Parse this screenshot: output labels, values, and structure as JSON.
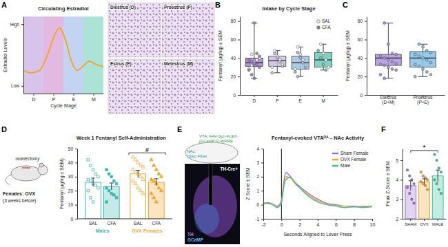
{
  "panel_labels": [
    "A",
    "B",
    "C",
    "D",
    "E",
    "F"
  ],
  "micrographs": {
    "labels": [
      "Diestrus (D)",
      "Proestrus (P)",
      "Estrus (E)",
      "Metestrus (M)"
    ]
  },
  "ovx_schematic": {
    "group": "Females: OVX",
    "note": "(3 weeks before)",
    "procedure": "ovariectomy"
  },
  "fp_schematic": {
    "vta": [
      "VTA: AAV-Syn-FLEX-",
      "jGCaMP7c-WPRE"
    ],
    "nac": [
      "NAc:",
      "Optic Fiber"
    ],
    "line": "TH-Cre+",
    "stain1": "TH",
    "stain2": "GCaMP"
  },
  "chart_data": [
    {
      "type": "line",
      "title": "Circulating Estradiol",
      "x_label": "Cycle Stage",
      "y_label": "Estradiol Levels",
      "x": [
        0,
        0.4,
        0.8,
        1.2,
        1.5,
        1.8,
        2.1,
        2.4,
        2.7,
        3.0,
        3.3,
        3.6,
        4.0
      ],
      "values": [
        0.3,
        0.27,
        0.3,
        0.5,
        0.72,
        0.85,
        0.7,
        0.42,
        0.3,
        0.36,
        0.42,
        0.38,
        0.35
      ],
      "color": "#f2a630",
      "colors": [
        "#d8c3ea",
        "#e2b9e0",
        "#c3d3f2",
        "#ade2d6"
      ],
      "xlim": [
        0,
        4
      ],
      "xticks": [
        {
          "value": 0.5,
          "label": "D"
        },
        {
          "value": 1.5,
          "label": "P"
        },
        {
          "value": 2.5,
          "label": "E"
        },
        {
          "value": 3.5,
          "label": "M"
        }
      ],
      "ylim": [
        0,
        1
      ],
      "yticks": [
        {
          "value": 0.1,
          "label": "Low"
        },
        {
          "value": 0.9,
          "label": "High"
        }
      ]
    },
    {
      "type": "box",
      "title": "Intake by Cycle Stage",
      "y_label": "Fentanyl (µg/kg) ± SEM",
      "categories": [
        "D",
        "P",
        "E",
        "M"
      ],
      "colors": [
        "#9f86cc",
        "#c9bde3",
        "#9cc1e3",
        "#6ccab8"
      ],
      "boxes": [
        {
          "min": 18,
          "q1": 31,
          "median": 35,
          "q3": 40,
          "max": 78
        },
        {
          "min": 24,
          "q1": 31,
          "median": 37,
          "q3": 42,
          "max": 48
        },
        {
          "min": 20,
          "q1": 28,
          "median": 35,
          "q3": 42,
          "max": 52
        },
        {
          "min": 27,
          "q1": 30,
          "median": 38,
          "q3": 46,
          "max": 55
        }
      ],
      "series": [
        {
          "name": "SAL",
          "marker": "open-circle",
          "values": [
            [
              32,
              35,
              38,
              40,
              28,
              44
            ],
            [
              48,
              42,
              38,
              33,
              30
            ],
            [
              52,
              44,
              38,
              32,
              28
            ],
            [
              55,
              45,
              38,
              30
            ]
          ]
        },
        {
          "name": "CFA",
          "marker": "filled-circle",
          "values": [
            [
              78,
              45,
              42,
              38,
              36,
              34,
              33,
              30,
              27,
              22,
              18
            ],
            [
              45,
              40,
              36,
              31,
              24
            ],
            [
              46,
              40,
              35,
              30,
              25,
              20
            ],
            [
              48,
              40,
              33,
              27
            ]
          ]
        }
      ],
      "legend": "top-right",
      "ylim": [
        0,
        85
      ],
      "yticks": [
        0,
        20,
        40,
        60,
        80
      ]
    },
    {
      "type": "box",
      "y_label": "Fentanyl (µg/kg) ± SEM",
      "categories": [
        "Diestrus (D+M)",
        "Proestrus (P+E)"
      ],
      "colors": [
        "#ae93dc",
        "#84bfe6"
      ],
      "boxes": [
        {
          "min": 18,
          "q1": 32,
          "median": 40,
          "q3": 44,
          "max": 78
        },
        {
          "min": 20,
          "q1": 30,
          "median": 40,
          "q3": 47,
          "max": 55
        }
      ],
      "points": [
        [
          78,
          55,
          45,
          44,
          42,
          40,
          38,
          36,
          34,
          33,
          32,
          30,
          28,
          27,
          22,
          18
        ],
        [
          55,
          52,
          48,
          46,
          44,
          42,
          40,
          38,
          35,
          33,
          31,
          28,
          25,
          22,
          20
        ]
      ],
      "ylim": [
        0,
        85
      ],
      "yticks": [
        0,
        20,
        40,
        60,
        80
      ]
    },
    {
      "type": "bar",
      "title": "Week 1 Fentanyl Self-Administration",
      "y_label": "Fentanyl (µg/kg ± SEM)",
      "categories": [
        "SAL",
        "CFA"
      ],
      "series": [
        {
          "name": "Males",
          "color": "#3ab5b0",
          "marker": "square",
          "values": [
            26,
            23
          ],
          "error": [
            3,
            2.5
          ],
          "points": [
            [
              42,
              38,
              35,
              32,
              30,
              28,
              27,
              25,
              24,
              22,
              20,
              15,
              12
            ],
            [
              35,
              32,
              30,
              27,
              25,
              22,
              20,
              18,
              17,
              15,
              12
            ]
          ]
        },
        {
          "name": "OVX Females",
          "color": "#f2a630",
          "marker": "triangle",
          "values": [
            32,
            26
          ],
          "error": [
            2.5,
            2.5
          ],
          "points": [
            [
              44,
              42,
              40,
              38,
              37,
              35,
              33,
              32,
              30,
              28,
              27,
              25,
              22,
              20,
              18
            ],
            [
              42,
              38,
              35,
              32,
              30,
              28,
              27,
              25,
              22,
              20,
              18,
              15,
              12
            ]
          ]
        }
      ],
      "annotations": [
        {
          "text": "#",
          "series": 1,
          "y": 47
        }
      ],
      "ylim": [
        0,
        50
      ],
      "yticks": [
        0,
        10,
        20,
        30,
        40,
        50
      ]
    },
    {
      "type": "line",
      "title": "Fentanyl-evoked VTAᴰᴬ→NAc Activity",
      "x_label": "Seconds Aligned to Lever Press",
      "y_label": "Z Score ± SEM",
      "x": [
        -2,
        -1.5,
        -1,
        -0.5,
        0,
        0.25,
        0.5,
        1,
        1.5,
        2,
        3,
        4,
        5,
        6,
        7,
        8,
        9,
        10
      ],
      "series": [
        {
          "name": "Sham Female",
          "color": "#9a6fd6",
          "values": [
            0.1,
            0.15,
            0.05,
            -0.1,
            0.3,
            1.6,
            2.3,
            2.0,
            1.6,
            1.3,
            0.8,
            0.4,
            0.1,
            0.0,
            -0.1,
            -0.1,
            -0.15,
            -0.1
          ]
        },
        {
          "name": "OVX Female",
          "color": "#f2a630",
          "values": [
            0.15,
            0.1,
            0.0,
            -0.15,
            0.2,
            1.4,
            2.0,
            1.9,
            1.5,
            1.2,
            0.7,
            0.3,
            0.05,
            -0.05,
            -0.1,
            -0.15,
            -0.1,
            -0.1
          ]
        },
        {
          "name": "Male",
          "color": "#3cc3a0",
          "values": [
            0.05,
            0.1,
            0.05,
            -0.2,
            0.1,
            1.2,
            1.8,
            1.95,
            1.6,
            1.2,
            0.6,
            0.2,
            0.0,
            -0.1,
            -0.2,
            -0.15,
            -0.2,
            -0.15
          ]
        }
      ],
      "vline": 0,
      "legend": "top-right",
      "xlim": [
        -2,
        10
      ],
      "xticks": [
        -2,
        0,
        2,
        4,
        6,
        8,
        10
      ],
      "ylim": [
        -1,
        4
      ],
      "yticks": [
        -1,
        0,
        1,
        2,
        3,
        4
      ]
    },
    {
      "type": "bar",
      "y_label": "Peak Z-Score ± SEM",
      "categories": [
        "SHAM",
        "OVX",
        "MALE"
      ],
      "values": [
        3.7,
        3.9,
        4.2
      ],
      "error": [
        0.25,
        0.15,
        0.3
      ],
      "colors": [
        "#9a6fd6",
        "#f2a630",
        "#3cc3a0"
      ],
      "points": [
        [
          4.5,
          4.2,
          4.0,
          3.8,
          3.6,
          3.3,
          3.0,
          2.8
        ],
        [
          4.4,
          4.2,
          4.1,
          4.0,
          3.9,
          3.8,
          3.7,
          3.5
        ],
        [
          5.3,
          5.0,
          4.6,
          4.4,
          4.0,
          3.8,
          3.5,
          3.3
        ]
      ],
      "annotations": [
        {
          "text": "*",
          "from": 0,
          "to": 2,
          "y": 5.5
        }
      ],
      "ylim": [
        2,
        5.6
      ],
      "yticks": [
        2,
        3,
        4,
        5
      ]
    }
  ]
}
